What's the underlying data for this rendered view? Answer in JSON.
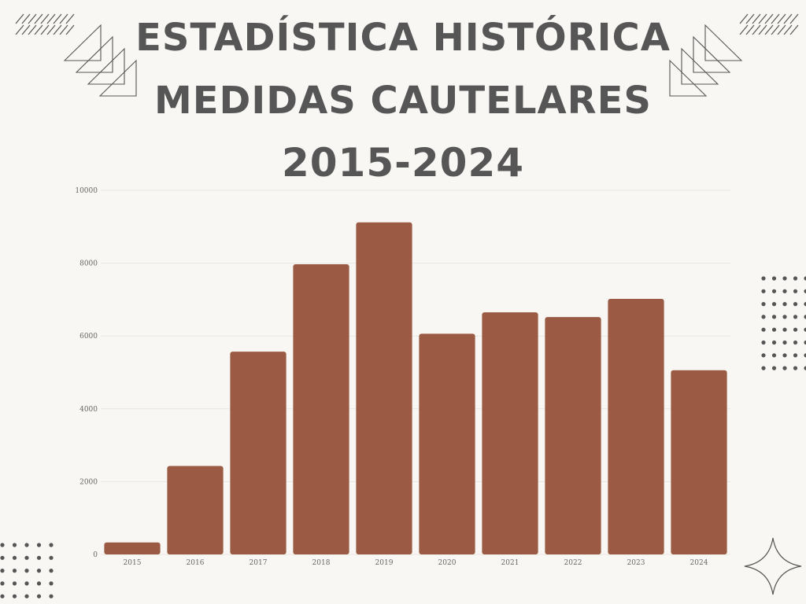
{
  "title": {
    "line1": "ESTADÍSTICA HISTÓRICA",
    "line2": "MEDIDAS CAUTELARES",
    "line3": "2015-2024"
  },
  "colors": {
    "background": "#f9f7f3",
    "bar": "#9a5a43",
    "title": "#565656",
    "grid": "#e9e7e3",
    "decoration": "#555555"
  },
  "chart_data": {
    "type": "bar",
    "categories": [
      "2015",
      "2016",
      "2017",
      "2018",
      "2019",
      "2020",
      "2021",
      "2022",
      "2023",
      "2024"
    ],
    "values": [
      330,
      2430,
      5570,
      7970,
      9120,
      6060,
      6650,
      6520,
      7020,
      5060
    ],
    "title": "",
    "xlabel": "",
    "ylabel": "",
    "ylim": [
      0,
      10000
    ],
    "yticks": [
      "0",
      "2000",
      "4000",
      "6000",
      "8000",
      "10000"
    ],
    "grid": true,
    "legend": "none"
  }
}
